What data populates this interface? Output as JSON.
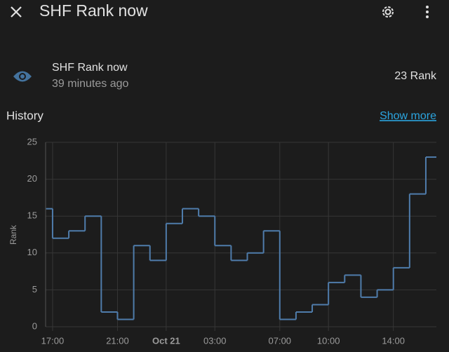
{
  "header": {
    "title": "SHF Rank now"
  },
  "entity": {
    "name": "SHF Rank now",
    "updated": "39 minutes ago",
    "state": "23 Rank"
  },
  "history": {
    "title": "History",
    "link": "Show more"
  },
  "chart_data": {
    "type": "line",
    "step": true,
    "y_label": "Rank",
    "color": "#4f7cab",
    "grid": true,
    "x": [
      16.6,
      17,
      18,
      19,
      20,
      21,
      22,
      23,
      24,
      25,
      26,
      27,
      28,
      29,
      30,
      31,
      32,
      33,
      34,
      35,
      36,
      37,
      38,
      39,
      40
    ],
    "values": [
      16,
      12,
      13,
      15,
      2,
      1,
      11,
      9,
      14,
      16,
      15,
      11,
      9,
      10,
      13,
      1,
      2,
      3,
      6,
      7,
      4,
      5,
      8,
      18,
      23
    ],
    "xlim": [
      16.57,
      40.65
    ],
    "xticks": [
      {
        "value": 17,
        "label": "17:00"
      },
      {
        "value": 21,
        "label": "21:00"
      },
      {
        "value": 24,
        "label": "Oct 21"
      },
      {
        "value": 27,
        "label": "03:00"
      },
      {
        "value": 31,
        "label": "07:00"
      },
      {
        "value": 34,
        "label": "10:00"
      },
      {
        "value": 38,
        "label": "14:00"
      }
    ],
    "ylim": [
      0,
      25
    ],
    "yticks": [
      0,
      5,
      10,
      15,
      20,
      25
    ]
  }
}
